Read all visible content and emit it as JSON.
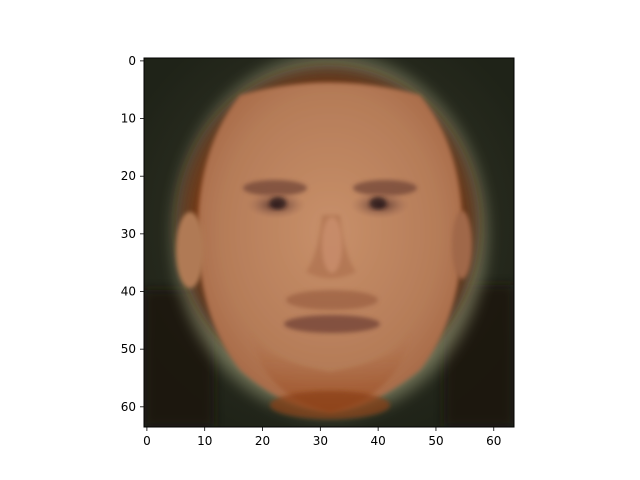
{
  "chart_data": {
    "type": "heatmap",
    "title": "",
    "xlabel": "",
    "ylabel": "",
    "image_description": "generated face image, 64x64 RGB pixels",
    "xlim": [
      -0.5,
      63.5
    ],
    "ylim": [
      63.5,
      -0.5
    ],
    "x_ticks": [
      0,
      10,
      20,
      30,
      40,
      50,
      60
    ],
    "x_tick_labels": [
      "0",
      "10",
      "20",
      "30",
      "40",
      "50",
      "60"
    ],
    "y_ticks": [
      0,
      10,
      20,
      30,
      40,
      50,
      60
    ],
    "y_tick_labels": [
      "0",
      "10",
      "20",
      "30",
      "40",
      "50",
      "60"
    ],
    "grid": false,
    "colors": {
      "background_dark": "#1f2318",
      "glow": "#9a9c78",
      "hair": "#8a3a12",
      "skin": "#c8906a",
      "skin_shadow": "#a86a48",
      "eye": "#5a3a33",
      "lips": "#7a4a3a",
      "beard": "#9a4a20"
    }
  }
}
